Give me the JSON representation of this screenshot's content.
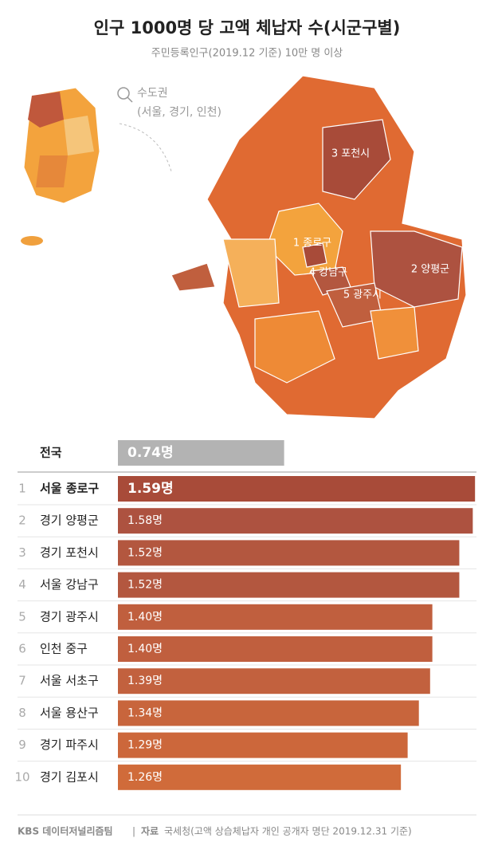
{
  "chart_data": {
    "type": "bar",
    "title": "인구 1000명 당 고액 체납자 수(시군구별)",
    "subtitle": "주민등록인구(2019.12 기준) 10만 명 이상",
    "callout": {
      "title": "수도권",
      "subtitle": "(서울, 경기, 인천)"
    },
    "map_labels": [
      "1 종로구",
      "2 양평군",
      "3 포천시",
      "4 강남구",
      "5 광주시"
    ],
    "national": {
      "label": "전국",
      "value": 0.74,
      "value_label": "0.74명",
      "color": "#b3b3b3"
    },
    "ranks": [
      1,
      2,
      3,
      4,
      5,
      6,
      7,
      8,
      9,
      10
    ],
    "categories": [
      "서울 종로구",
      "경기 양평군",
      "경기 포천시",
      "서울 강남구",
      "경기 광주시",
      "인천 중구",
      "서울 서초구",
      "서울 용산구",
      "경기 파주시",
      "경기 김포시"
    ],
    "values": [
      1.59,
      1.58,
      1.52,
      1.52,
      1.4,
      1.4,
      1.39,
      1.34,
      1.29,
      1.26
    ],
    "value_labels": [
      "1.59명",
      "1.58명",
      "1.52명",
      "1.52명",
      "1.40명",
      "1.40명",
      "1.39명",
      "1.34명",
      "1.29명",
      "1.26명"
    ],
    "colors": [
      "#a84b39",
      "#ad5240",
      "#b3573f",
      "#b3573f",
      "#c05f3e",
      "#c05f3e",
      "#c2613e",
      "#c8653c",
      "#cc673b",
      "#d06b3a"
    ],
    "xlim": [
      0,
      1.6
    ],
    "footer": {
      "team": "KBS 데이터저널리즘팀",
      "separator": "|",
      "source_label": "자료",
      "source": "국세청(고액 상습체납자 개인 공개자 명단 2019.12.31 기준)"
    }
  }
}
